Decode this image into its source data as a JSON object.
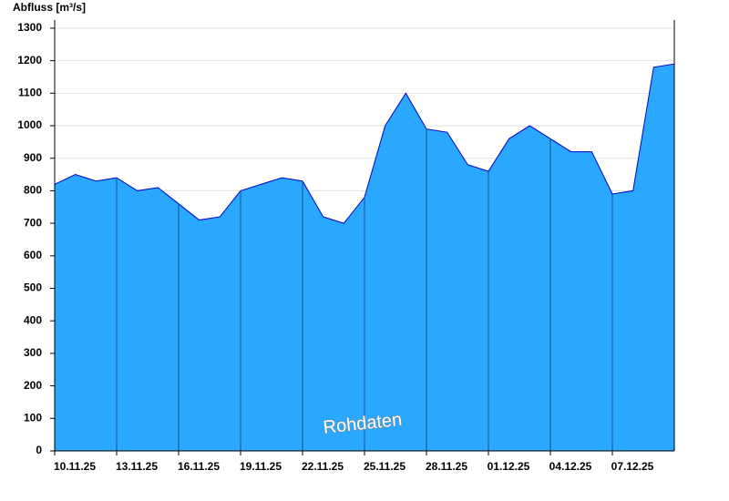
{
  "chart_data": {
    "type": "area",
    "y_label": "Abfluss [m³/s]",
    "annotation": "Rohdaten",
    "x": [
      "10.11.25",
      "11.11.25",
      "12.11.25",
      "13.11.25",
      "14.11.25",
      "15.11.25",
      "16.11.25",
      "17.11.25",
      "18.11.25",
      "19.11.25",
      "20.11.25",
      "21.11.25",
      "22.11.25",
      "23.11.25",
      "24.11.25",
      "25.11.25",
      "26.11.25",
      "27.11.25",
      "28.11.25",
      "29.11.25",
      "30.11.25",
      "01.12.25",
      "02.12.25",
      "03.12.25",
      "04.12.25",
      "05.12.25",
      "06.12.25",
      "07.12.25",
      "08.12.25",
      "09.12.25",
      "10.12.25"
    ],
    "series": [
      {
        "name": "Abfluss",
        "color": "#2aa7ff",
        "line_color": "#0000cc",
        "values": [
          820,
          850,
          830,
          840,
          800,
          810,
          760,
          710,
          720,
          800,
          820,
          840,
          830,
          720,
          700,
          780,
          1000,
          1100,
          990,
          980,
          880,
          860,
          960,
          1000,
          960,
          920,
          920,
          790,
          800,
          1180,
          1190
        ]
      }
    ],
    "xticks": [
      "10.11.25",
      "13.11.25",
      "16.11.25",
      "19.11.25",
      "22.11.25",
      "25.11.25",
      "28.11.25",
      "01.12.25",
      "04.12.25",
      "07.12.25"
    ],
    "ylim": [
      0,
      1325
    ],
    "yticks": [
      0,
      100,
      200,
      300,
      400,
      500,
      600,
      700,
      800,
      900,
      1000,
      1100,
      1200,
      1300
    ],
    "grid": true
  }
}
